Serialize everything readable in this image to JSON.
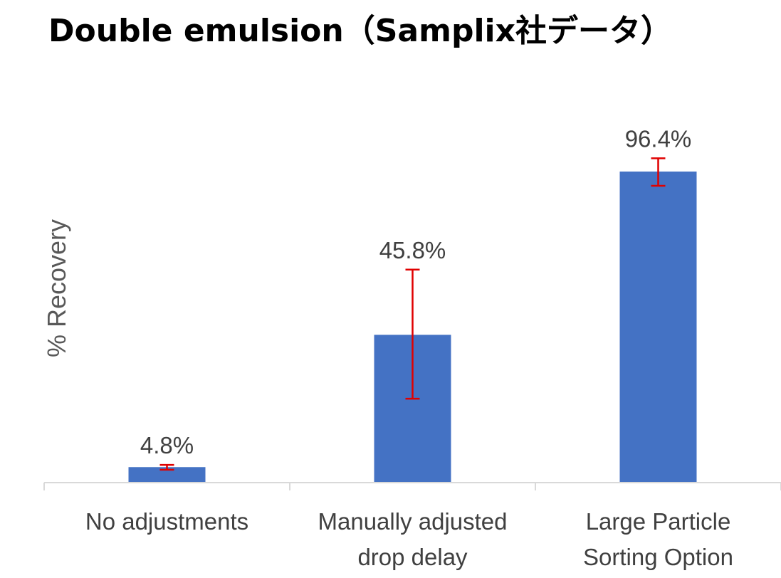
{
  "chart_data": {
    "type": "bar",
    "title": "Double emulsion（Samplix社データ）",
    "xlabel": "",
    "ylabel": "% Recovery",
    "categories": [
      [
        "No adjustments"
      ],
      [
        "Manually adjusted",
        "drop delay"
      ],
      [
        "Large Particle",
        "Sorting Option"
      ]
    ],
    "values": [
      4.8,
      45.8,
      96.4
    ],
    "data_labels": [
      "4.8%",
      "45.8%",
      "96.4%"
    ],
    "error_bars": [
      {
        "low": 4.0,
        "high": 5.5
      },
      {
        "low": 26.0,
        "high": 66.0
      },
      {
        "low": 92.0,
        "high": 100.5
      }
    ],
    "ylim": [
      0,
      100
    ],
    "grid": false,
    "legend": "none",
    "colors": {
      "bar": "#4472C4",
      "error_bar": "#E00000",
      "axis": "#D9D9D9",
      "text": "#404040"
    }
  }
}
